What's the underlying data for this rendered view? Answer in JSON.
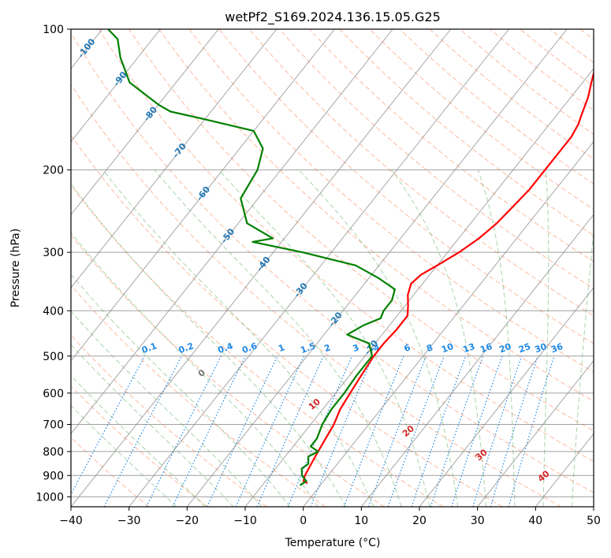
{
  "chart_data": {
    "type": "skew-t",
    "title": "wetPf2_S169.2024.136.15.05.G25",
    "xlabel": "Temperature (°C)",
    "ylabel": "Pressure (hPa)",
    "xlim": [
      -40,
      50
    ],
    "ylim": [
      1050,
      100
    ],
    "y_scale": "log",
    "x_ticks": [
      "−40",
      "−30",
      "−20",
      "−10",
      "0",
      "10",
      "20",
      "30",
      "40",
      "50"
    ],
    "x_tick_values": [
      -40,
      -30,
      -20,
      -10,
      0,
      10,
      20,
      30,
      40,
      50
    ],
    "y_ticks": [
      "100",
      "200",
      "300",
      "400",
      "500",
      "600",
      "700",
      "800",
      "900",
      "1000"
    ],
    "y_tick_values": [
      100,
      200,
      300,
      400,
      500,
      600,
      700,
      800,
      900,
      1000
    ],
    "isotherm_labels": [
      "-100",
      "-90",
      "-80",
      "-70",
      "-60",
      "-50",
      "-40",
      "-30",
      "-20",
      "-10"
    ],
    "isotherm_label_values": [
      -100,
      -90,
      -80,
      -70,
      -60,
      -50,
      -40,
      -30,
      -20,
      -10
    ],
    "isotherm_label_pressures": [
      110,
      128,
      152,
      182,
      225,
      277,
      318,
      362,
      418,
      480
    ],
    "mixing_ratio_labels": [
      "0.1",
      "0.2",
      "0.4",
      "0.6",
      "1",
      "1.5",
      "2",
      "3",
      "4",
      "6",
      "8",
      "10",
      "13",
      "16",
      "20",
      "25",
      "30",
      "36"
    ],
    "mixing_ratio_values": [
      0.1,
      0.2,
      0.4,
      0.6,
      1,
      1.5,
      2,
      3,
      4,
      6,
      8,
      10,
      13,
      16,
      20,
      25,
      30,
      36
    ],
    "mixing_ratio_label_pressure": 480,
    "moist_adiabat_labels": [
      "0",
      "10",
      "20",
      "30",
      "40"
    ],
    "moist_adiabat_label_values": [
      0,
      10,
      20,
      30,
      40
    ],
    "series": [
      {
        "name": "",
        "color": "#ff0000",
        "pressure": [
          935,
          925,
          900,
          850,
          800,
          750,
          700,
          650,
          600,
          550,
          500,
          470,
          440,
          410,
          390,
          370,
          350,
          335,
          320,
          300,
          280,
          260,
          240,
          220,
          200,
          180,
          170,
          160,
          150,
          140,
          130,
          120,
          110,
          100
        ],
        "values": [
          -2.5,
          -3.5,
          -4,
          -4.5,
          -5,
          -5.5,
          -6,
          -7,
          -7.5,
          -8,
          -8.5,
          -8.5,
          -8.2,
          -8.2,
          -9.5,
          -11,
          -12,
          -11.5,
          -10,
          -8,
          -6.5,
          -5.5,
          -5,
          -4.5,
          -4.5,
          -4.5,
          -4.5,
          -5,
          -6,
          -7,
          -8.5,
          -10,
          -12,
          -14
        ]
      },
      {
        "name": "",
        "color": "#008000",
        "pressure": [
          945,
          925,
          900,
          870,
          850,
          820,
          800,
          780,
          750,
          700,
          650,
          600,
          550,
          500,
          470,
          450,
          430,
          415,
          400,
          380,
          360,
          340,
          320,
          300,
          285,
          280,
          260,
          230,
          200,
          180,
          165,
          155,
          150,
          145,
          130,
          115,
          105,
          100
        ],
        "values": [
          -3.5,
          -3,
          -4.5,
          -5.5,
          -5,
          -6,
          -5,
          -7,
          -7,
          -8,
          -8.5,
          -8.5,
          -8.8,
          -8.8,
          -11,
          -16,
          -14.5,
          -12.5,
          -13,
          -13,
          -14,
          -18.5,
          -24,
          -35,
          -45,
          -42,
          -48.5,
          -53,
          -54,
          -56,
          -60,
          -71,
          -77,
          -80,
          -88,
          -93,
          -96,
          -99
        ]
      }
    ],
    "background_colors": {
      "isotherms": "#888888",
      "isobars": "#888888",
      "dry_adiabats": "#ff7f50",
      "moist_adiabats": "#55aa55",
      "mixing_ratio": "#1e88e5",
      "iso_label": "#1f77b4",
      "moist_label": "#d62728"
    },
    "grid": true
  }
}
